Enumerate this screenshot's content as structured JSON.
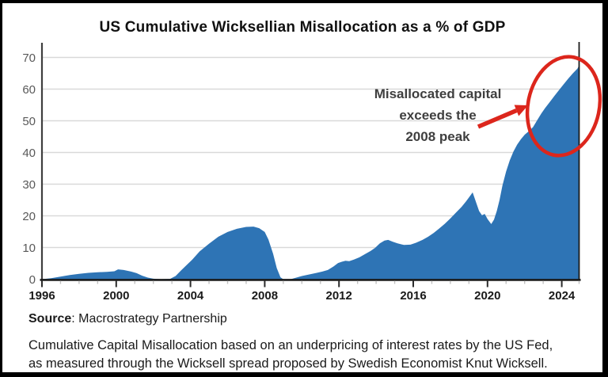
{
  "chart_data": {
    "type": "area",
    "title": "US Cumulative Wicksellian Misallocation as a % of GDP",
    "xlabel": "",
    "ylabel": "",
    "xlim": [
      1996,
      2025.1
    ],
    "ylim": [
      0,
      70
    ],
    "grid": true,
    "legend": "none",
    "yticks": [
      0,
      10,
      20,
      30,
      40,
      50,
      60,
      70
    ],
    "xticks": [
      1996,
      2000,
      2004,
      2008,
      2012,
      2016,
      2020,
      2024
    ],
    "series": [
      {
        "name": "Cumulative Wicksellian Misallocation (% of GDP)",
        "x": [
          1996,
          1996.5,
          1997,
          1997.5,
          1998,
          1998.5,
          1999,
          1999.5,
          1999.9,
          2000.1,
          2000.4,
          2000.8,
          2001.1,
          2001.4,
          2001.7,
          2002,
          2002.4,
          2002.9,
          2003.2,
          2003.5,
          2003.8,
          2004.1,
          2004.5,
          2005,
          2005.5,
          2006,
          2006.5,
          2007,
          2007.4,
          2007.7,
          2008,
          2008.2,
          2008.45,
          2008.65,
          2008.85,
          2009,
          2009.4,
          2009.7,
          2010,
          2010.4,
          2010.8,
          2011.1,
          2011.4,
          2011.7,
          2011.95,
          2012.15,
          2012.35,
          2012.55,
          2012.8,
          2013.1,
          2013.4,
          2013.7,
          2013.95,
          2014.2,
          2014.45,
          2014.65,
          2014.9,
          2015.15,
          2015.5,
          2015.85,
          2016.15,
          2016.5,
          2016.8,
          2017.1,
          2017.4,
          2017.7,
          2018,
          2018.3,
          2018.6,
          2018.85,
          2019.05,
          2019.2,
          2019.35,
          2019.55,
          2019.7,
          2019.85,
          2020,
          2020.2,
          2020.35,
          2020.5,
          2020.65,
          2020.8,
          2021,
          2021.2,
          2021.4,
          2021.6,
          2021.8,
          2022,
          2022.2,
          2022.45,
          2022.7,
          2022.9,
          2023.1,
          2023.35,
          2023.6,
          2023.85,
          2024.1,
          2024.35,
          2024.6,
          2024.85,
          2025.05
        ],
        "y": [
          0,
          0.3,
          0.8,
          1.3,
          1.7,
          2.0,
          2.2,
          2.3,
          2.5,
          3.1,
          2.9,
          2.4,
          1.9,
          1.1,
          0.5,
          0.15,
          0,
          0.1,
          1.0,
          2.8,
          4.5,
          6.2,
          8.8,
          11.2,
          13.4,
          14.9,
          15.9,
          16.5,
          16.6,
          16.1,
          14.9,
          12.5,
          8.0,
          3.5,
          0.6,
          0,
          0,
          0.5,
          1.0,
          1.5,
          2.0,
          2.4,
          2.9,
          4.0,
          5.1,
          5.5,
          5.8,
          5.7,
          6.2,
          6.9,
          7.9,
          8.9,
          9.9,
          11.3,
          12.2,
          12.4,
          11.8,
          11.3,
          10.8,
          10.9,
          11.5,
          12.4,
          13.4,
          14.6,
          16.0,
          17.5,
          19.2,
          21.0,
          22.8,
          24.6,
          26.2,
          27.4,
          24.8,
          21.5,
          20.2,
          20.6,
          19.0,
          17.4,
          18.8,
          21.5,
          25.0,
          29.5,
          34.0,
          37.5,
          40.3,
          42.5,
          44.2,
          45.6,
          46.6,
          48.0,
          50.4,
          52.3,
          54.0,
          55.9,
          57.8,
          59.7,
          61.5,
          63.3,
          65.0,
          66.5,
          67.5
        ]
      }
    ],
    "annotation": {
      "lines": [
        "Misallocated capital",
        "exceeds the",
        "2008 peak"
      ]
    },
    "colors": {
      "area": "#2E74B5",
      "annotation_red": "#DC261C",
      "grid": "#D9D9D9",
      "ytick_label": "#595959",
      "xtick_label": "#1A1A1A",
      "annotation_text": "#3F3F3F"
    }
  },
  "footer": {
    "source_label": "Source",
    "source_rest": ": Macrostrategy Partnership",
    "caption_line1": "Cumulative Capital Misallocation based on an underpricing of interest rates by the US Fed,",
    "caption_line2": "as measured through the Wicksell spread proposed by Swedish Economist Knut Wicksell."
  }
}
